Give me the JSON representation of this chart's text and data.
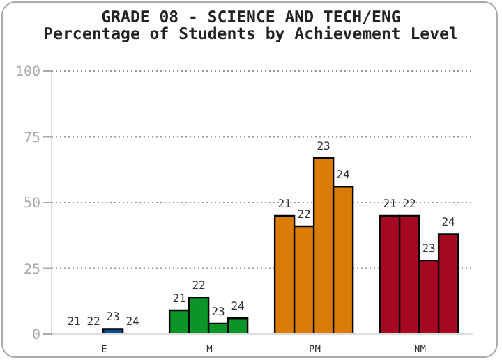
{
  "chart_data": {
    "type": "bar",
    "title": "GRADE 08 - SCIENCE AND TECH/ENG",
    "subtitle": "Percentage of Students by Achievement Level",
    "categories": [
      "E",
      "M",
      "PM",
      "NM"
    ],
    "series": [
      {
        "name": "21",
        "colors": [
          "#0f4c8c",
          "#0b9428",
          "#d97c08",
          "#a50820"
        ],
        "values": [
          0,
          9,
          45,
          45
        ]
      },
      {
        "name": "22",
        "colors": [
          "#0f4c8c",
          "#0b9428",
          "#d97c08",
          "#a50820"
        ],
        "values": [
          0,
          14,
          41,
          45
        ]
      },
      {
        "name": "23",
        "colors": [
          "#0f4c8c",
          "#0b9428",
          "#d97c08",
          "#a50820"
        ],
        "values": [
          2,
          4,
          67,
          28
        ]
      },
      {
        "name": "24",
        "colors": [
          "#0f4c8c",
          "#0b9428",
          "#d97c08",
          "#a50820"
        ],
        "values": [
          0,
          6,
          56,
          38
        ]
      }
    ],
    "ylim": [
      0,
      100
    ],
    "yticks": [
      0,
      25,
      50,
      75,
      100
    ],
    "grid": "y",
    "legend": false
  }
}
